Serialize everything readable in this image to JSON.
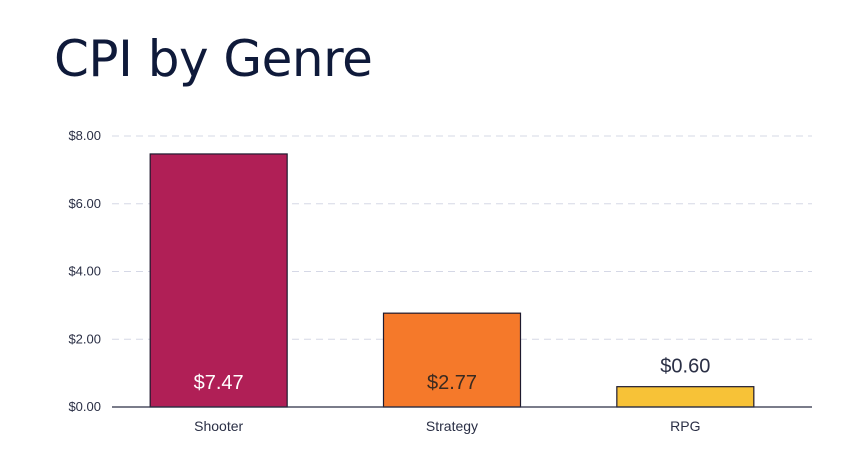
{
  "chart_data": {
    "type": "bar",
    "title": "CPI by Genre",
    "categories": [
      "Shooter",
      "Strategy",
      "RPG"
    ],
    "values": [
      7.47,
      2.77,
      0.6
    ],
    "value_labels": [
      "$7.47",
      "$2.77",
      "$0.60"
    ],
    "bar_colors": [
      "#b01f56",
      "#f5792a",
      "#f7c237"
    ],
    "data_label_colors": [
      "#ffffff",
      "#3a2a20",
      "#2a2f45"
    ],
    "data_label_placement": [
      "inside-bottom",
      "inside-bottom",
      "above"
    ],
    "ylim": [
      0,
      8
    ],
    "yticks": [
      0,
      2,
      4,
      6,
      8
    ],
    "ytick_labels": [
      "$0.00",
      "$2.00",
      "$4.00",
      "$6.00",
      "$8.00"
    ],
    "grid": true,
    "xlabel": "",
    "ylabel": ""
  }
}
